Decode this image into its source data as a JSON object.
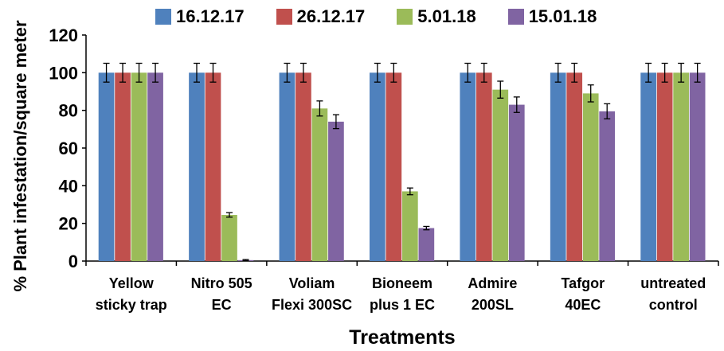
{
  "chart_data": {
    "type": "bar",
    "title": "",
    "xlabel": "Treatments",
    "ylabel": "% Plant infestation/square meter",
    "ylim": [
      0,
      120
    ],
    "yticks": [
      0,
      20,
      40,
      60,
      80,
      100,
      120
    ],
    "legend_position": "top",
    "grid": false,
    "categories": [
      [
        "Yellow",
        "sticky trap"
      ],
      [
        "Nitro 505",
        "EC"
      ],
      [
        "Voliam",
        "Flexi 300SC"
      ],
      [
        "Bioneem",
        "plus 1 EC"
      ],
      [
        "Admire",
        "200SL"
      ],
      [
        "Tafgor",
        "40EC"
      ],
      [
        "untreated",
        "control"
      ]
    ],
    "series": [
      {
        "name": "16.12.17",
        "color": "#4F81BD",
        "values": [
          100,
          100,
          100,
          100,
          100,
          100,
          100
        ],
        "errors": [
          5,
          5,
          5,
          5,
          5,
          5,
          5
        ]
      },
      {
        "name": "26.12.17",
        "color": "#C0504D",
        "values": [
          100,
          100,
          100,
          100,
          100,
          100,
          100
        ],
        "errors": [
          5,
          5,
          5,
          5,
          5,
          5,
          5
        ]
      },
      {
        "name": "5.01.18",
        "color": "#9BBB59",
        "values": [
          100,
          24.5,
          81,
          37,
          91,
          89,
          100
        ],
        "errors": [
          5,
          1.2,
          4,
          1.8,
          4.5,
          4.5,
          5
        ]
      },
      {
        "name": "15.01.18",
        "color": "#8064A2",
        "values": [
          100,
          0.5,
          74,
          17.5,
          83,
          79.5,
          100
        ],
        "errors": [
          5,
          0.3,
          3.7,
          0.9,
          4.1,
          4,
          5
        ]
      }
    ]
  }
}
